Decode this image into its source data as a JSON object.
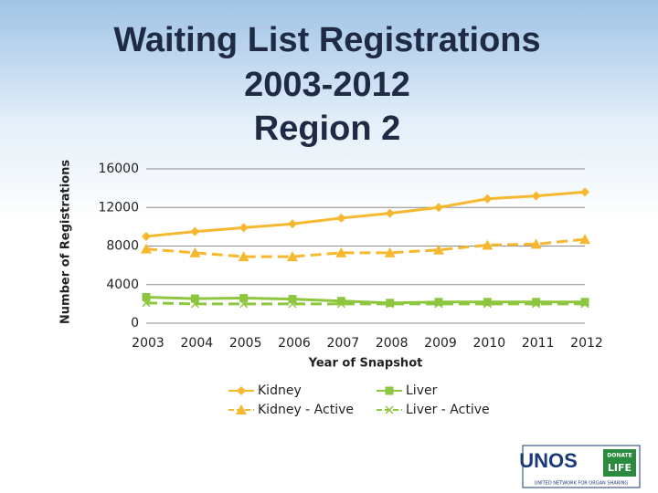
{
  "chart_data": {
    "type": "line",
    "title": [
      "Waiting List Registrations",
      "2003-2012",
      "Region 2"
    ],
    "x_label": "Year of Snapshot",
    "y_label": "Number of Registrations",
    "categories": [
      "2003",
      "2004",
      "2005",
      "2006",
      "2007",
      "2008",
      "2009",
      "2010",
      "2011",
      "2012"
    ],
    "series": [
      {
        "name": "Kidney",
        "color": "#F5B82E",
        "dashed": false,
        "marker": "diamond",
        "values": [
          9000,
          9500,
          9900,
          10300,
          10900,
          11400,
          12000,
          12900,
          13200,
          13600
        ]
      },
      {
        "name": "Liver",
        "color": "#8DC63F",
        "dashed": false,
        "marker": "square",
        "values": [
          2700,
          2550,
          2600,
          2500,
          2300,
          2100,
          2200,
          2200,
          2200,
          2200
        ]
      },
      {
        "name": "Kidney - Active",
        "color": "#F5B82E",
        "dashed": true,
        "marker": "triangle",
        "values": [
          7700,
          7300,
          6900,
          6900,
          7300,
          7300,
          7600,
          8100,
          8200,
          8700
        ]
      },
      {
        "name": "Liver - Active",
        "color": "#8DC63F",
        "dashed": true,
        "marker": "x",
        "values": [
          2100,
          2000,
          2000,
          2000,
          2000,
          2000,
          2000,
          2000,
          2000,
          2000
        ]
      }
    ],
    "ylim": [
      0,
      16000
    ],
    "yticks": [
      0,
      4000,
      8000,
      12000,
      16000
    ],
    "grid": true,
    "legend": "bottom"
  },
  "logo": {
    "name": "UNOS",
    "badge": [
      "DONATE",
      "LIFE"
    ],
    "subtitle": "UNITED NETWORK FOR ORGAN SHARING"
  }
}
